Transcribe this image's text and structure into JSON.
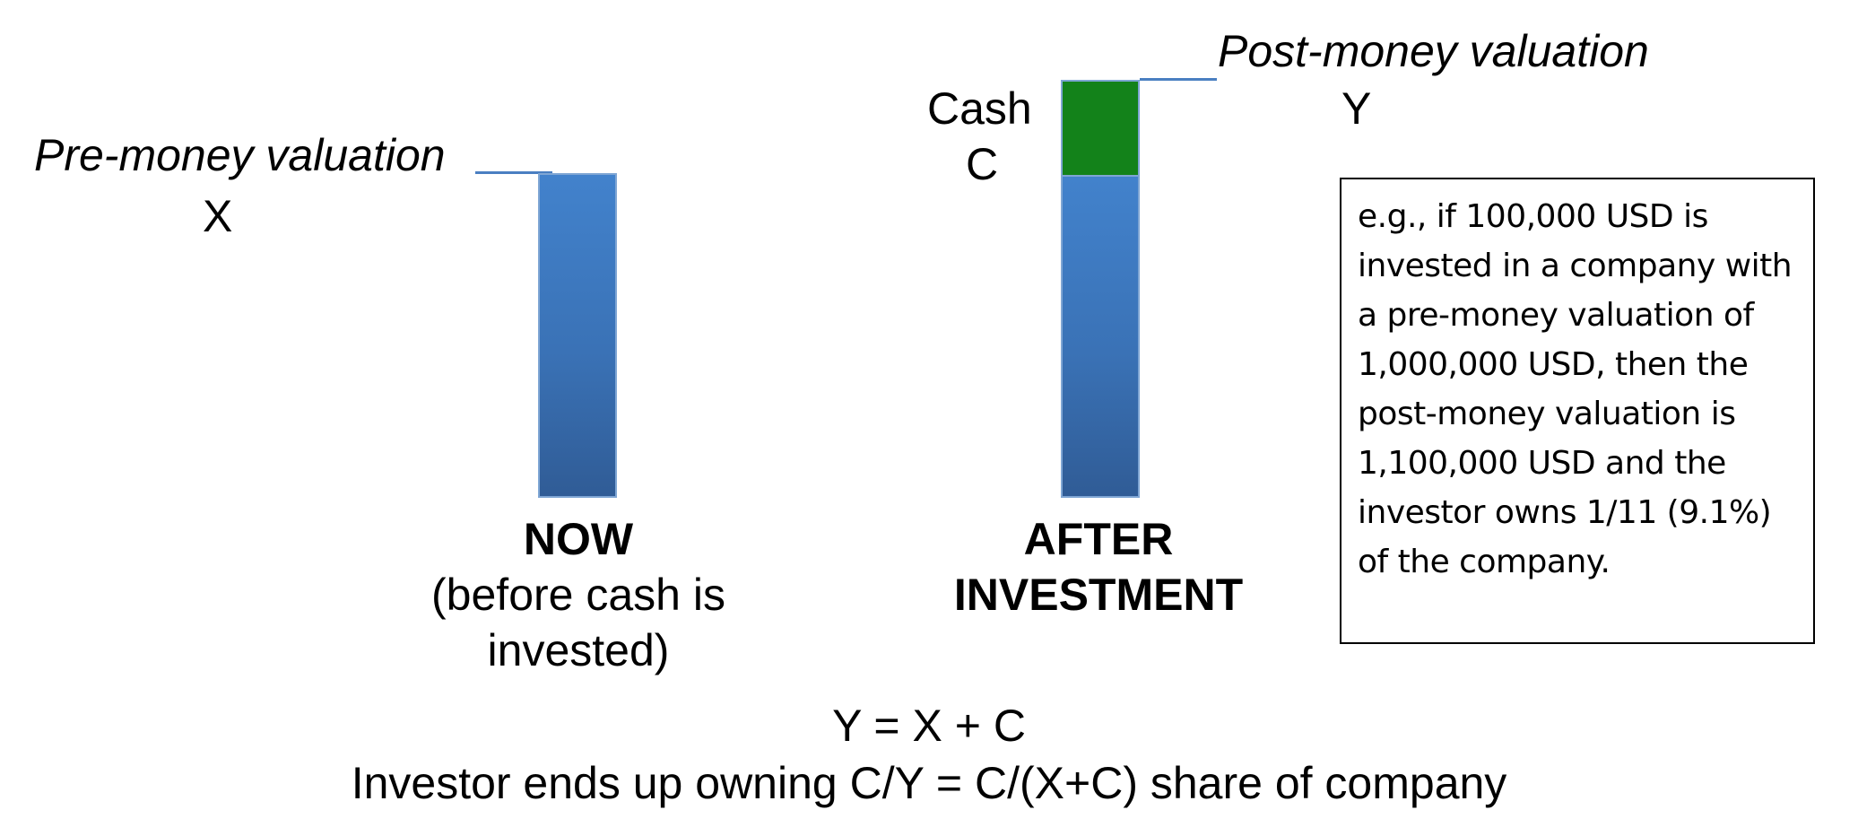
{
  "pre_money": {
    "label": "Pre-money valuation",
    "symbol": "X"
  },
  "post_money": {
    "label": "Post-money valuation",
    "symbol": "Y"
  },
  "cash": {
    "label": "Cash",
    "symbol": "C"
  },
  "now_caption": {
    "title": "NOW",
    "subtitle_line1": "(before cash is",
    "subtitle_line2": "invested)"
  },
  "after_caption": {
    "title_line1": "AFTER",
    "title_line2": "INVESTMENT"
  },
  "example": {
    "text": "e.g.,  if 100,000 USD is invested in a company with a pre-money valuation of 1,000,000 USD, then the post-money valuation is 1,100,000 USD and the investor owns 1/11 (9.1%) of the company."
  },
  "formula": {
    "line1": "Y = X + C",
    "line2": "Investor ends up owning C/Y = C/(X+C) share of company"
  },
  "colors": {
    "bar_blue": "#3d78c0",
    "cash_green": "#13821a",
    "leader_line": "#4a7fc1"
  }
}
